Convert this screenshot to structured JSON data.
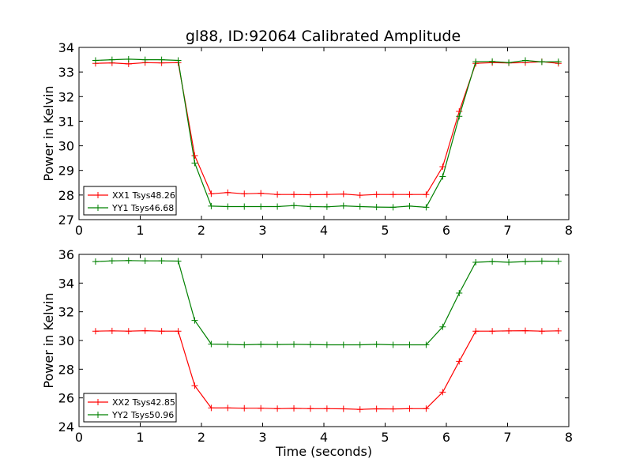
{
  "title": "gl88, ID:92064 Calibrated Amplitude",
  "chart_data": [
    {
      "type": "line",
      "xlabel": "",
      "ylabel": "Power in Kelvin",
      "xlim": [
        0,
        8
      ],
      "ylim": [
        27,
        34
      ],
      "xticks": [
        0,
        1,
        2,
        3,
        4,
        5,
        6,
        7,
        8
      ],
      "yticks": [
        27,
        28,
        29,
        30,
        31,
        32,
        33,
        34
      ],
      "grid": false,
      "legend_position": "lower-left",
      "x": [
        0.27,
        0.54,
        0.81,
        1.08,
        1.35,
        1.62,
        1.89,
        2.16,
        2.43,
        2.7,
        2.97,
        3.24,
        3.51,
        3.78,
        4.05,
        4.32,
        4.59,
        4.86,
        5.13,
        5.4,
        5.67,
        5.94,
        6.21,
        6.48,
        6.75,
        7.02,
        7.29,
        7.56,
        7.83
      ],
      "series": [
        {
          "name": "XX1 Tsys48.26",
          "color": "#ff0000",
          "values": [
            33.35,
            33.37,
            33.33,
            33.38,
            33.37,
            33.38,
            29.6,
            28.05,
            28.1,
            28.05,
            28.07,
            28.02,
            28.02,
            28.01,
            28.02,
            28.04,
            27.99,
            28.02,
            28.02,
            28.02,
            28.02,
            29.15,
            31.4,
            33.35,
            33.38,
            33.37,
            33.38,
            33.42,
            33.35
          ]
        },
        {
          "name": "YY1 Tsys46.68",
          "color": "#008000",
          "values": [
            33.47,
            33.5,
            33.52,
            33.5,
            33.5,
            33.47,
            29.3,
            27.55,
            27.53,
            27.53,
            27.53,
            27.53,
            27.57,
            27.53,
            27.52,
            27.56,
            27.53,
            27.51,
            27.5,
            27.55,
            27.5,
            28.75,
            31.2,
            33.42,
            33.43,
            33.38,
            33.47,
            33.41,
            33.42
          ]
        }
      ]
    },
    {
      "type": "line",
      "xlabel": "Time (seconds)",
      "ylabel": "Power in Kelvin",
      "xlim": [
        0,
        8
      ],
      "ylim": [
        24,
        36
      ],
      "xticks": [
        0,
        1,
        2,
        3,
        4,
        5,
        6,
        7,
        8
      ],
      "yticks": [
        24,
        26,
        28,
        30,
        32,
        34,
        36
      ],
      "grid": false,
      "legend_position": "lower-left",
      "x": [
        0.27,
        0.54,
        0.81,
        1.08,
        1.35,
        1.62,
        1.89,
        2.16,
        2.43,
        2.7,
        2.97,
        3.24,
        3.51,
        3.78,
        4.05,
        4.32,
        4.59,
        4.86,
        5.13,
        5.4,
        5.67,
        5.94,
        6.21,
        6.48,
        6.75,
        7.02,
        7.29,
        7.56,
        7.83
      ],
      "series": [
        {
          "name": "XX2 Tsys42.85",
          "color": "#ff0000",
          "values": [
            30.65,
            30.67,
            30.65,
            30.68,
            30.65,
            30.65,
            26.85,
            25.3,
            25.3,
            25.28,
            25.28,
            25.25,
            25.27,
            25.25,
            25.25,
            25.24,
            25.2,
            25.24,
            25.23,
            25.25,
            25.25,
            26.4,
            28.55,
            30.65,
            30.65,
            30.67,
            30.68,
            30.65,
            30.67
          ]
        },
        {
          "name": "YY2 Tsys50.96",
          "color": "#008000",
          "values": [
            35.5,
            35.55,
            35.57,
            35.55,
            35.55,
            35.53,
            31.4,
            29.75,
            29.73,
            29.7,
            29.73,
            29.72,
            29.73,
            29.72,
            29.7,
            29.7,
            29.7,
            29.73,
            29.7,
            29.7,
            29.7,
            30.95,
            33.3,
            35.45,
            35.5,
            35.45,
            35.5,
            35.53,
            35.52
          ]
        }
      ]
    }
  ]
}
